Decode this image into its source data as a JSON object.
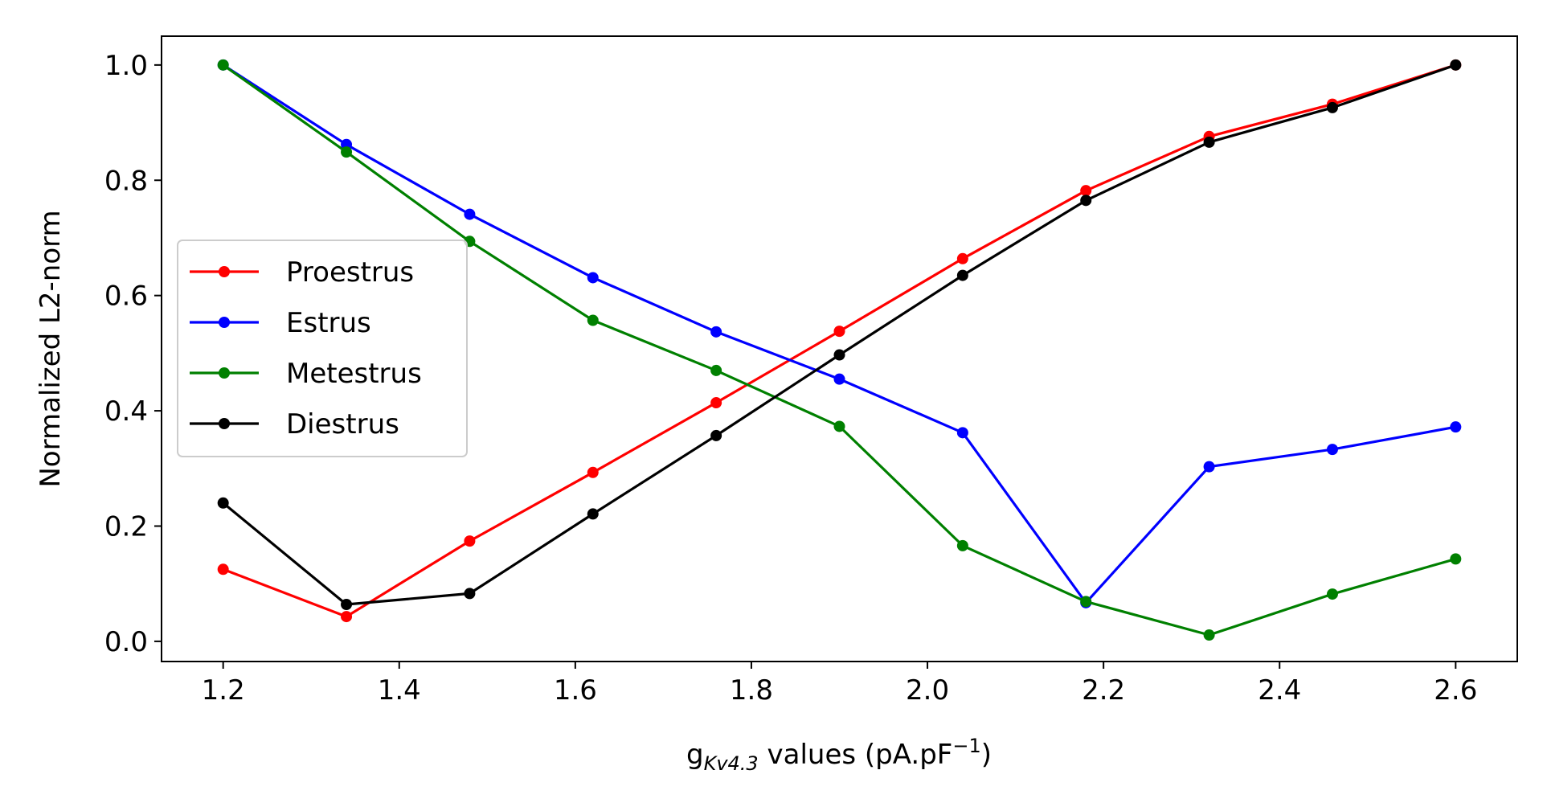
{
  "chart_data": {
    "type": "line",
    "xlabel": {
      "main": "g",
      "subscript": "Kv4.3",
      "rest": " values (pA.pF",
      "superscript": "−1",
      "end": ")"
    },
    "ylabel": "Normalized L2-norm",
    "xlim": [
      1.13,
      2.67
    ],
    "ylim": [
      -0.035,
      1.05
    ],
    "xticks": [
      1.2,
      1.4,
      1.6,
      1.8,
      2.0,
      2.2,
      2.4,
      2.6
    ],
    "xtick_labels": [
      "1.2",
      "1.4",
      "1.6",
      "1.8",
      "2.0",
      "2.2",
      "2.4",
      "2.6"
    ],
    "yticks": [
      0.0,
      0.2,
      0.4,
      0.6,
      0.8,
      1.0
    ],
    "ytick_labels": [
      "0.0",
      "0.2",
      "0.4",
      "0.6",
      "0.8",
      "1.0"
    ],
    "grid": false,
    "legend_position": "center-left",
    "x": [
      1.2,
      1.34,
      1.48,
      1.62,
      1.76,
      1.9,
      2.04,
      2.18,
      2.32,
      2.46,
      2.6
    ],
    "series": [
      {
        "name": "Proestrus",
        "color": "#ff0000",
        "values": [
          0.125,
          0.043,
          0.174,
          0.293,
          0.414,
          0.538,
          0.664,
          0.782,
          0.876,
          0.932,
          1.0
        ]
      },
      {
        "name": "Estrus",
        "color": "#0000ff",
        "values": [
          1.0,
          0.862,
          0.741,
          0.631,
          0.537,
          0.455,
          0.362,
          0.067,
          0.303,
          0.333,
          0.372
        ]
      },
      {
        "name": "Metestrus",
        "color": "#008000",
        "values": [
          1.0,
          0.849,
          0.694,
          0.557,
          0.47,
          0.373,
          0.166,
          0.069,
          0.011,
          0.082,
          0.143
        ]
      },
      {
        "name": "Diestrus",
        "color": "#000000",
        "values": [
          0.24,
          0.064,
          0.083,
          0.221,
          0.357,
          0.497,
          0.635,
          0.765,
          0.866,
          0.926,
          1.0
        ]
      }
    ]
  }
}
